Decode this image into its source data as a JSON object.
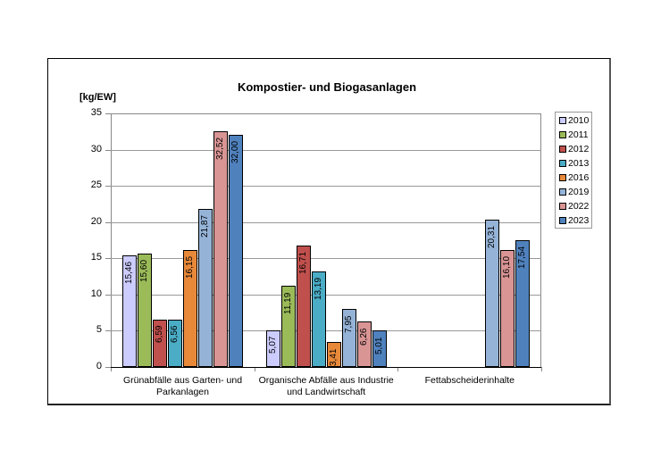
{
  "chart_data": {
    "type": "bar",
    "title": "Kompostier- und Biogasanlagen",
    "xlabel": "",
    "ylabel": "[kg/EW]",
    "ylim": [
      0,
      35
    ],
    "yticks": [
      0,
      5,
      10,
      15,
      20,
      25,
      30,
      35
    ],
    "grid": true,
    "legend_position": "right",
    "categories": [
      "Grünabfälle aus Garten- und Parkanlagen",
      "Organische Abfälle aus Industrie und Landwirtschaft",
      "Fettabscheiderinhalte"
    ],
    "series": [
      {
        "name": "2010",
        "color": "#ccccff",
        "values": [
          15.46,
          5.07,
          null
        ],
        "labels": [
          "15,46",
          "5,07",
          ""
        ]
      },
      {
        "name": "2011",
        "color": "#9bbb59",
        "values": [
          15.6,
          11.19,
          null
        ],
        "labels": [
          "15,60",
          "11,19",
          ""
        ]
      },
      {
        "name": "2012",
        "color": "#c0504d",
        "values": [
          6.59,
          16.71,
          null
        ],
        "labels": [
          "6,59",
          "16,71",
          ""
        ]
      },
      {
        "name": "2013",
        "color": "#4bacc6",
        "values": [
          6.56,
          13.19,
          null
        ],
        "labels": [
          "6,56",
          "13,19",
          ""
        ]
      },
      {
        "name": "2016",
        "color": "#e8893a",
        "values": [
          16.15,
          3.41,
          null
        ],
        "labels": [
          "16,15",
          "3,41",
          ""
        ]
      },
      {
        "name": "2019",
        "color": "#95b3d7",
        "values": [
          21.87,
          7.95,
          20.31
        ],
        "labels": [
          "21,87",
          "7,95",
          "20,31"
        ]
      },
      {
        "name": "2022",
        "color": "#d99594",
        "values": [
          32.52,
          6.26,
          16.1
        ],
        "labels": [
          "32,52",
          "6,26",
          "16,10"
        ]
      },
      {
        "name": "2023",
        "color": "#4f81bd",
        "values": [
          32.0,
          5.01,
          17.54
        ],
        "labels": [
          "32,00",
          "5,01",
          "17,54"
        ]
      }
    ]
  },
  "category_lines": [
    [
      "Grünabfälle aus Garten- und",
      "Parkanlagen"
    ],
    [
      "Organische Abfälle aus Industrie",
      "und Landwirtschaft"
    ],
    [
      "Fettabscheiderinhalte",
      ""
    ]
  ]
}
